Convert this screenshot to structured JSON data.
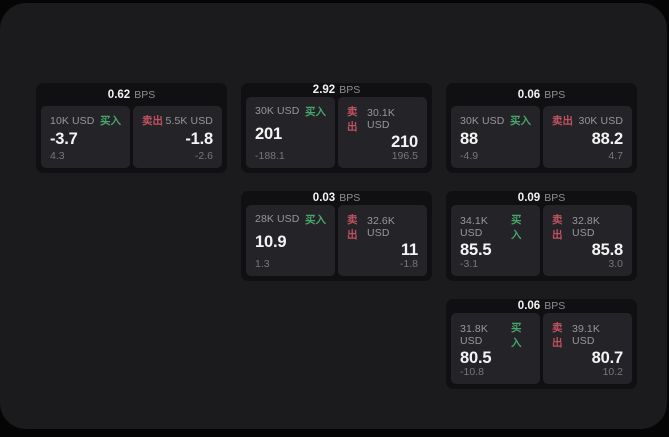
{
  "page": {
    "canvas_background": "#050505",
    "window_background": "#1b1b1d"
  },
  "labels": {
    "bps_unit": "BPS",
    "buy": "买入",
    "sell": "卖出"
  },
  "colors": {
    "buy_text": "#46a56b",
    "sell_text": "#c05260",
    "card_bg": "#101012",
    "panel_bg": "#242428"
  },
  "cards": [
    {
      "bps": "0.62",
      "grid": {
        "col": 1,
        "row": 1
      },
      "buy": {
        "amount": "10K USD",
        "value": "-3.7",
        "sub": "4.3"
      },
      "sell": {
        "amount": "5.5K USD",
        "value": "-1.8",
        "sub": "-2.6"
      }
    },
    {
      "bps": "2.92",
      "grid": {
        "col": 2,
        "row": 1
      },
      "buy": {
        "amount": "30K USD",
        "value": "201",
        "sub": "-188.1"
      },
      "sell": {
        "amount": "30.1K USD",
        "value": "210",
        "sub": "196.5"
      }
    },
    {
      "bps": "0.06",
      "grid": {
        "col": 3,
        "row": 1
      },
      "buy": {
        "amount": "30K USD",
        "value": "88",
        "sub": "-4.9"
      },
      "sell": {
        "amount": "30K USD",
        "value": "88.2",
        "sub": "4.7"
      }
    },
    {
      "bps": "0.03",
      "grid": {
        "col": 2,
        "row": 2
      },
      "buy": {
        "amount": "28K USD",
        "value": "10.9",
        "sub": "1.3"
      },
      "sell": {
        "amount": "32.6K USD",
        "value": "11",
        "sub": "-1.8"
      }
    },
    {
      "bps": "0.09",
      "grid": {
        "col": 3,
        "row": 2
      },
      "buy": {
        "amount": "34.1K USD",
        "value": "85.5",
        "sub": "-3.1"
      },
      "sell": {
        "amount": "32.8K USD",
        "value": "85.8",
        "sub": "3.0"
      }
    },
    {
      "bps": "0.06",
      "grid": {
        "col": 3,
        "row": 3
      },
      "buy": {
        "amount": "31.8K USD",
        "value": "80.5",
        "sub": "-10.8"
      },
      "sell": {
        "amount": "39.1K USD",
        "value": "80.7",
        "sub": "10.2"
      }
    }
  ]
}
